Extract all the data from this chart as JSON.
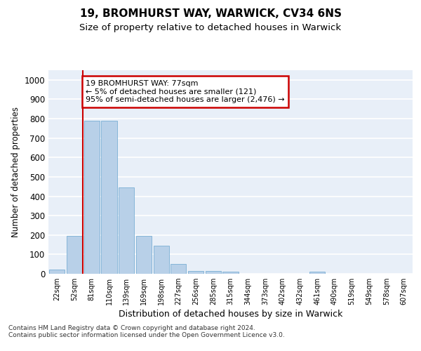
{
  "title1": "19, BROMHURST WAY, WARWICK, CV34 6NS",
  "title2": "Size of property relative to detached houses in Warwick",
  "xlabel": "Distribution of detached houses by size in Warwick",
  "ylabel": "Number of detached properties",
  "bar_labels": [
    "22sqm",
    "52sqm",
    "81sqm",
    "110sqm",
    "139sqm",
    "169sqm",
    "198sqm",
    "227sqm",
    "256sqm",
    "285sqm",
    "315sqm",
    "344sqm",
    "373sqm",
    "402sqm",
    "432sqm",
    "461sqm",
    "490sqm",
    "519sqm",
    "549sqm",
    "578sqm",
    "607sqm"
  ],
  "bar_values": [
    20,
    195,
    790,
    790,
    445,
    195,
    145,
    50,
    15,
    15,
    10,
    0,
    0,
    0,
    0,
    10,
    0,
    0,
    0,
    0,
    0
  ],
  "bar_color": "#b8d0e8",
  "bar_edge_color": "#7aafd4",
  "vline_x": 1.5,
  "vline_color": "#cc0000",
  "annotation_text": "19 BROMHURST WAY: 77sqm\n← 5% of detached houses are smaller (121)\n95% of semi-detached houses are larger (2,476) →",
  "annotation_box_color": "#cc0000",
  "ylim": [
    0,
    1050
  ],
  "yticks": [
    0,
    100,
    200,
    300,
    400,
    500,
    600,
    700,
    800,
    900,
    1000
  ],
  "background_color": "#e8eff8",
  "footer_text": "Contains HM Land Registry data © Crown copyright and database right 2024.\nContains public sector information licensed under the Open Government Licence v3.0.",
  "grid_color": "#ffffff",
  "title1_fontsize": 11,
  "title2_fontsize": 9.5
}
